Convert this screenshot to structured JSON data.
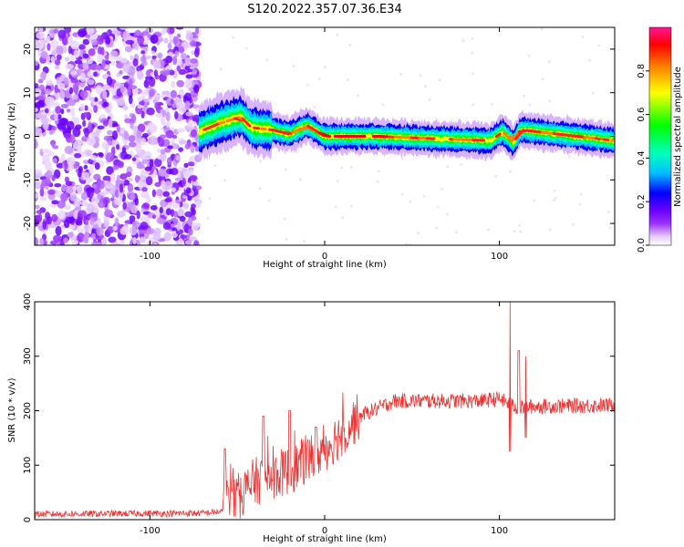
{
  "title": "S120.2022.357.07.36.E34",
  "chart_data": [
    {
      "type": "heatmap",
      "xlabel": "Height of straight line (km)",
      "ylabel": "Frequency (Hz)",
      "xlim": [
        -166,
        166
      ],
      "ylim": [
        -25,
        25
      ],
      "xticks": [
        -100,
        0,
        100
      ],
      "xtick_labels": [
        "-100",
        "0",
        "100"
      ],
      "yticks": [
        -20,
        -10,
        0,
        10,
        20
      ],
      "ytick_labels": [
        "-20",
        "-10",
        "0",
        "10",
        "20"
      ],
      "colorbar": {
        "label": "Normalized spectral amplitude",
        "range": [
          0,
          1
        ],
        "ticks": [
          0.0,
          0.2,
          0.4,
          0.6,
          0.8
        ],
        "tick_labels": [
          "0.0",
          "0.2",
          "0.4",
          "0.6",
          "0.8"
        ],
        "colormap": [
          "#ffffff",
          "#e6ccff",
          "#9b30ff",
          "#6a00ff",
          "#0000ff",
          "#00bfff",
          "#00ffc0",
          "#00ff00",
          "#ffff00",
          "#ff8000",
          "#ff0000",
          "#ff1493"
        ]
      },
      "signal_band": {
        "noise_region_x": [
          -166,
          -72
        ],
        "ridge": [
          {
            "x": -72,
            "f": 1.0
          },
          {
            "x": -60,
            "f": 3.0
          },
          {
            "x": -48,
            "f": 4.5
          },
          {
            "x": -42,
            "f": 2.0
          },
          {
            "x": -30,
            "f": 1.5
          },
          {
            "x": -20,
            "f": 0.5
          },
          {
            "x": -10,
            "f": 2.5
          },
          {
            "x": 0,
            "f": 0.0
          },
          {
            "x": 30,
            "f": 0.0
          },
          {
            "x": 60,
            "f": -0.5
          },
          {
            "x": 95,
            "f": -1.0
          },
          {
            "x": 102,
            "f": 1.0
          },
          {
            "x": 108,
            "f": -1.5
          },
          {
            "x": 112,
            "f": 1.5
          },
          {
            "x": 166,
            "f": -1.0
          }
        ]
      }
    },
    {
      "type": "line",
      "xlabel": "Height of straight line (km)",
      "ylabel": "SNR (10 * v/v)",
      "xlim": [
        -166,
        166
      ],
      "ylim": [
        0,
        400
      ],
      "xticks": [
        -100,
        0,
        100
      ],
      "xtick_labels": [
        "-100",
        "0",
        "100"
      ],
      "yticks": [
        0,
        100,
        200,
        300,
        400
      ],
      "ytick_labels": [
        "0",
        "100",
        "200",
        "300",
        "400"
      ],
      "series": [
        {
          "color": "#ee3333",
          "envelope": [
            {
              "x": -166,
              "y": 10
            },
            {
              "x": -70,
              "y": 12
            },
            {
              "x": -58,
              "y": 15
            },
            {
              "x": -57,
              "y": 60
            },
            {
              "x": -50,
              "y": 40
            },
            {
              "x": -40,
              "y": 70
            },
            {
              "x": -20,
              "y": 90
            },
            {
              "x": 0,
              "y": 130
            },
            {
              "x": 20,
              "y": 190
            },
            {
              "x": 40,
              "y": 218
            },
            {
              "x": 90,
              "y": 218
            },
            {
              "x": 100,
              "y": 222
            },
            {
              "x": 110,
              "y": 205
            },
            {
              "x": 120,
              "y": 208
            },
            {
              "x": 166,
              "y": 210
            }
          ],
          "spikes": [
            {
              "x": -57,
              "y": 130
            },
            {
              "x": -35,
              "y": 190
            },
            {
              "x": -20,
              "y": 200
            },
            {
              "x": -5,
              "y": 170
            },
            {
              "x": 106,
              "y": 400
            },
            {
              "x": 111,
              "y": 310
            },
            {
              "x": 115,
              "y": 300
            }
          ],
          "dips": [
            {
              "x": 106,
              "y": 125
            },
            {
              "x": 115,
              "y": 150
            }
          ]
        }
      ]
    }
  ]
}
